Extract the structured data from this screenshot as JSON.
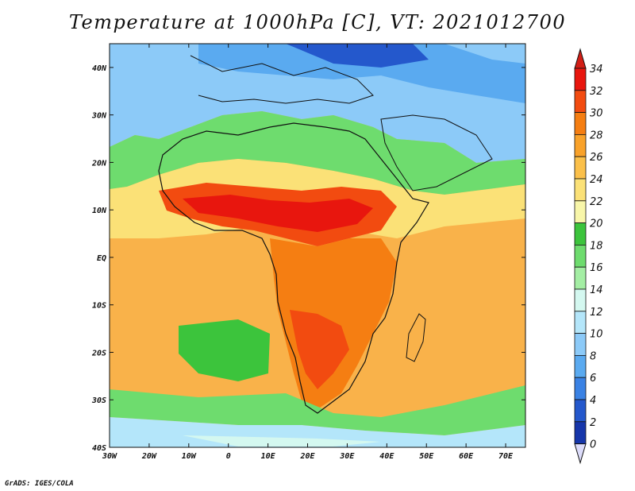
{
  "title": "Temperature at 1000hPa [C], VT: 2021012700",
  "credit": "GrADS: IGES/COLA",
  "map": {
    "lon_range": [
      -30,
      75
    ],
    "lat_range": [
      -40,
      45
    ],
    "lon_ticks": [
      "30W",
      "20W",
      "10W",
      "0",
      "10E",
      "20E",
      "30E",
      "40E",
      "50E",
      "60E",
      "70E"
    ],
    "lat_ticks": [
      "40N",
      "30N",
      "20N",
      "10N",
      "EQ",
      "10S",
      "20S",
      "30S",
      "40S"
    ]
  },
  "colorbar": {
    "labels": [
      "34",
      "32",
      "30",
      "28",
      "26",
      "24",
      "22",
      "20",
      "18",
      "16",
      "14",
      "12",
      "10",
      "8",
      "6",
      "4",
      "2",
      "0"
    ],
    "colors": [
      "#e8160e",
      "#f24b10",
      "#f57e12",
      "#f9a22a",
      "#fbc04a",
      "#fbe177",
      "#f8f6a9",
      "#3cc43c",
      "#6edc6e",
      "#a4eea4",
      "#d4f8f0",
      "#b4e6fa",
      "#8ccaf8",
      "#5aaaf0",
      "#3a82e4",
      "#2458cc",
      "#1636aa",
      "#0e1a7a"
    ],
    "top_arrow_color": "#d21e16",
    "bottom_arrow_color": "#dcdcfa"
  }
}
